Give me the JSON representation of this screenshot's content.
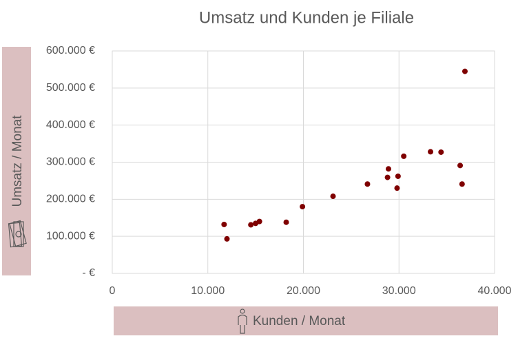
{
  "chart_data": {
    "type": "scatter",
    "title": "Umsatz und Kunden je Filiale",
    "x_label": "Kunden / Monat",
    "y_label": "Umsatz / Monat",
    "x": [
      11700,
      12000,
      14500,
      15000,
      15400,
      18200,
      19900,
      23100,
      26700,
      28800,
      28900,
      29900,
      29800,
      30500,
      33300,
      34400,
      36400,
      36600,
      36900
    ],
    "y": [
      132000,
      93000,
      131000,
      135000,
      140000,
      138000,
      180000,
      208000,
      241000,
      259000,
      282000,
      262000,
      230000,
      316000,
      328000,
      327000,
      291000,
      241000,
      545000
    ],
    "color": "#7f0000",
    "xlim": [
      0,
      40000
    ],
    "ylim": [
      0,
      600000
    ],
    "xticks": [
      0,
      {
        "value": 10000,
        "label": "10.000"
      },
      {
        "value": 20000,
        "label": "20.000"
      },
      {
        "value": 30000,
        "label": "30.000"
      },
      {
        "value": 40000,
        "label": "40.000"
      }
    ],
    "yticks": [
      {
        "value": 0,
        "label": "- €"
      },
      {
        "value": 100000,
        "label": "100.000 €"
      },
      {
        "value": 200000,
        "label": "200.000 €"
      },
      {
        "value": 300000,
        "label": "300.000 €"
      },
      {
        "value": 400000,
        "label": "400.000 €"
      },
      {
        "value": 500000,
        "label": "500.000 €"
      },
      {
        "value": 600000,
        "label": "600.000 €"
      }
    ],
    "grid": true
  }
}
